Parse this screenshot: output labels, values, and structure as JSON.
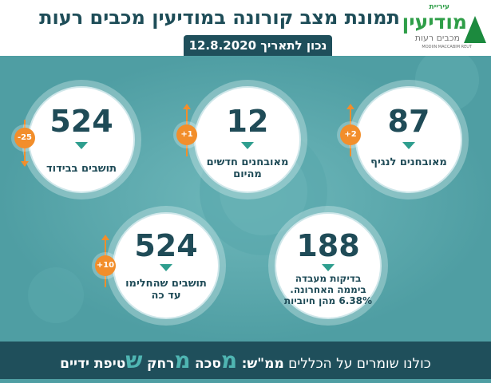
{
  "header": {
    "title": "תמונת מצב קורונה במודיעין מכבים רעות",
    "date": "נכון לתאריך 12.8.2020"
  },
  "logo": {
    "small": "עיריית",
    "main": "מודיעין",
    "sub": "מכבים רעות",
    "en": "MODIIN MACCABIM REUT"
  },
  "stats": {
    "recovered_pending": {
      "number": "87",
      "label": "מאובחנים לנגיף",
      "change": "+2"
    },
    "new_today": {
      "number": "12",
      "label": "מאובחנים חדשים מהיום",
      "change": "+1"
    },
    "isolation": {
      "number": "524",
      "label": "תושבים בבידוד",
      "change": "-25"
    },
    "tests": {
      "number": "188",
      "label": "בדיקות מעבדה ביממה האחרונה. 6.38% מהן חיוביות"
    },
    "recovered": {
      "number": "524",
      "label": "תושבים שהחלימו עד כה",
      "change": "+10"
    }
  },
  "footer": {
    "prefix": "כולנו שומרים על הכללים",
    "mem_sh": "ממ\"ש:",
    "m1": "מ",
    "w1": "סכה",
    "m2": "מ",
    "w2": "רחק",
    "s": "ש",
    "w3": "טיפת ידיים"
  },
  "colors": {
    "background": "#4f9ea3",
    "dark": "#1f4f5b",
    "accent": "#f28e2b",
    "down_arrow": "#2e9e8e"
  }
}
